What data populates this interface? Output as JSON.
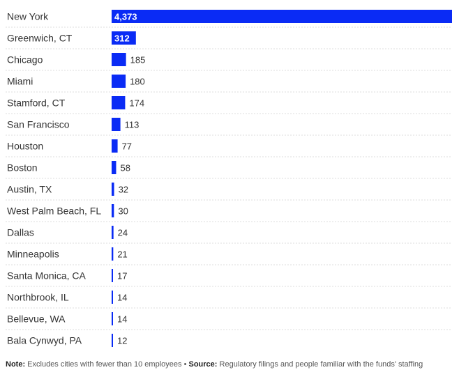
{
  "chart_data": {
    "type": "bar",
    "orientation": "horizontal",
    "categories": [
      "New York",
      "Greenwich, CT",
      "Chicago",
      "Miami",
      "Stamford, CT",
      "San Francisco",
      "Houston",
      "Boston",
      "Austin, TX",
      "West Palm Beach, FL",
      "Dallas",
      "Minneapolis",
      "Santa Monica, CA",
      "Northbrook, IL",
      "Bellevue, WA",
      "Bala Cynwyd, PA"
    ],
    "values": [
      4373,
      312,
      185,
      180,
      174,
      113,
      77,
      58,
      32,
      30,
      24,
      21,
      17,
      14,
      14,
      12
    ],
    "value_labels": [
      "4,373",
      "312",
      "185",
      "180",
      "174",
      "113",
      "77",
      "58",
      "32",
      "30",
      "24",
      "21",
      "17",
      "14",
      "14",
      "12"
    ],
    "bar_color": "#0a2bf5",
    "grid": false,
    "legend": false
  },
  "footnote": {
    "note_label": "Note:",
    "note_text": "Excludes cities with fewer than 10 employees",
    "separator": "•",
    "source_label": "Source:",
    "source_text": "Regulatory filings and people familiar with the funds' staffing"
  }
}
